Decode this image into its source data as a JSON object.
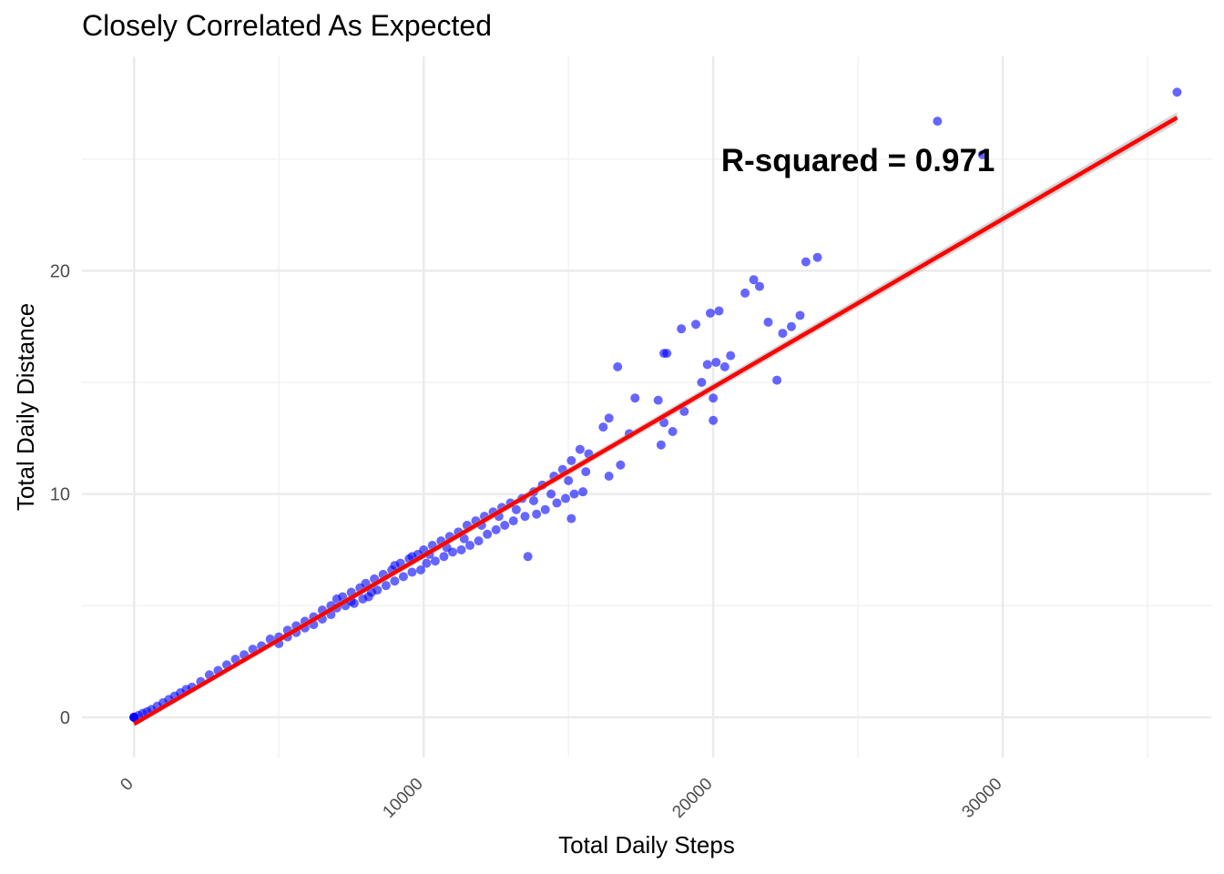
{
  "chart_data": {
    "type": "scatter",
    "title": "Closely Correlated As Expected",
    "xlabel": "Total Daily Steps",
    "ylabel": "Total Daily Distance",
    "xlim": [
      -1800,
      37200
    ],
    "ylim": [
      -1.8,
      29.6
    ],
    "x_ticks": [
      0,
      10000,
      20000,
      30000
    ],
    "x_tick_labels": [
      "0",
      "10000",
      "20000",
      "30000"
    ],
    "y_ticks": [
      0,
      10,
      20
    ],
    "y_tick_labels": [
      "0",
      "10",
      "20"
    ],
    "x_minor_ticks": [
      5000,
      15000,
      25000,
      35000
    ],
    "y_minor_ticks": [
      5,
      15,
      25
    ],
    "grid": true,
    "colors": {
      "points": "#0000ff",
      "fit_line": "#ff0000",
      "ribbon": "#999999",
      "grid": "#ebebeb"
    },
    "annotation": {
      "text": "R-squared =  0.971",
      "x": 25000,
      "y": 25
    },
    "fit_line": {
      "intercept": -0.3,
      "slope": 0.000754,
      "x_range": [
        0,
        36019
      ]
    },
    "points": [
      [
        0,
        0
      ],
      [
        0,
        0
      ],
      [
        0,
        0
      ],
      [
        0,
        0
      ],
      [
        0,
        0
      ],
      [
        0,
        0
      ],
      [
        0,
        0
      ],
      [
        0,
        0
      ],
      [
        150,
        0.08
      ],
      [
        300,
        0.18
      ],
      [
        450,
        0.25
      ],
      [
        600,
        0.35
      ],
      [
        800,
        0.5
      ],
      [
        1000,
        0.65
      ],
      [
        1200,
        0.8
      ],
      [
        1400,
        0.95
      ],
      [
        1600,
        1.1
      ],
      [
        1800,
        1.25
      ],
      [
        2000,
        1.35
      ],
      [
        2300,
        1.6
      ],
      [
        2600,
        1.9
      ],
      [
        2900,
        2.1
      ],
      [
        3200,
        2.35
      ],
      [
        3500,
        2.6
      ],
      [
        3800,
        2.8
      ],
      [
        4100,
        3.05
      ],
      [
        4400,
        3.2
      ],
      [
        4700,
        3.5
      ],
      [
        5000,
        3.6
      ],
      [
        5000,
        3.3
      ],
      [
        5300,
        3.9
      ],
      [
        5300,
        3.6
      ],
      [
        5600,
        4.1
      ],
      [
        5600,
        3.8
      ],
      [
        5900,
        4.3
      ],
      [
        5900,
        4.0
      ],
      [
        6200,
        4.5
      ],
      [
        6200,
        4.15
      ],
      [
        6500,
        4.8
      ],
      [
        6500,
        4.4
      ],
      [
        6800,
        5.0
      ],
      [
        6800,
        4.6
      ],
      [
        7000,
        5.3
      ],
      [
        7000,
        4.9
      ],
      [
        7200,
        5.4
      ],
      [
        7300,
        5.0
      ],
      [
        7500,
        5.6
      ],
      [
        7600,
        5.1
      ],
      [
        7800,
        5.8
      ],
      [
        7900,
        5.3
      ],
      [
        8000,
        6.0
      ],
      [
        8100,
        5.4
      ],
      [
        8300,
        6.2
      ],
      [
        8400,
        5.7
      ],
      [
        8600,
        6.4
      ],
      [
        8700,
        5.9
      ],
      [
        8900,
        6.6
      ],
      [
        9000,
        6.1
      ],
      [
        9200,
        6.9
      ],
      [
        9300,
        6.3
      ],
      [
        9500,
        7.1
      ],
      [
        9600,
        6.5
      ],
      [
        9800,
        7.3
      ],
      [
        9900,
        6.6
      ],
      [
        10000,
        7.5
      ],
      [
        10100,
        6.9
      ],
      [
        10300,
        7.7
      ],
      [
        10400,
        7.0
      ],
      [
        10600,
        7.9
      ],
      [
        10700,
        7.2
      ],
      [
        10900,
        8.1
      ],
      [
        11000,
        7.4
      ],
      [
        11200,
        8.3
      ],
      [
        11300,
        7.5
      ],
      [
        11500,
        8.6
      ],
      [
        11600,
        7.7
      ],
      [
        11800,
        8.8
      ],
      [
        11900,
        7.9
      ],
      [
        12100,
        9.0
      ],
      [
        12200,
        8.2
      ],
      [
        12400,
        9.2
      ],
      [
        12500,
        8.4
      ],
      [
        12700,
        9.4
      ],
      [
        12800,
        8.6
      ],
      [
        13000,
        9.6
      ],
      [
        13100,
        8.8
      ],
      [
        13400,
        9.8
      ],
      [
        13500,
        9.0
      ],
      [
        13800,
        10.1
      ],
      [
        13900,
        9.1
      ],
      [
        14100,
        10.4
      ],
      [
        14200,
        9.3
      ],
      [
        14500,
        10.8
      ],
      [
        14600,
        9.6
      ],
      [
        14800,
        11.1
      ],
      [
        14900,
        9.8
      ],
      [
        15100,
        11.5
      ],
      [
        15200,
        10.0
      ],
      [
        15400,
        12.0
      ],
      [
        15500,
        10.1
      ],
      [
        15700,
        11.8
      ],
      [
        13600,
        7.2
      ],
      [
        15100,
        8.9
      ],
      [
        16200,
        13.0
      ],
      [
        16400,
        13.4
      ],
      [
        16700,
        15.7
      ],
      [
        17300,
        14.3
      ],
      [
        17100,
        12.7
      ],
      [
        16400,
        10.8
      ],
      [
        16800,
        11.3
      ],
      [
        18100,
        14.2
      ],
      [
        18200,
        12.2
      ],
      [
        18300,
        13.2
      ],
      [
        18300,
        16.3
      ],
      [
        18400,
        16.3
      ],
      [
        18600,
        12.8
      ],
      [
        18900,
        17.4
      ],
      [
        19000,
        13.7
      ],
      [
        19400,
        17.6
      ],
      [
        19600,
        15.0
      ],
      [
        19800,
        15.8
      ],
      [
        19900,
        18.1
      ],
      [
        20000,
        13.3
      ],
      [
        20000,
        14.3
      ],
      [
        20100,
        15.9
      ],
      [
        20200,
        18.2
      ],
      [
        20400,
        15.7
      ],
      [
        20600,
        16.2
      ],
      [
        21100,
        19.0
      ],
      [
        21400,
        19.6
      ],
      [
        21600,
        19.3
      ],
      [
        21900,
        17.7
      ],
      [
        22200,
        15.1
      ],
      [
        22400,
        17.2
      ],
      [
        22700,
        17.5
      ],
      [
        23000,
        18.0
      ],
      [
        23200,
        20.4
      ],
      [
        23600,
        20.6
      ],
      [
        27745,
        26.7
      ],
      [
        29300,
        25.2
      ],
      [
        36019,
        28.0
      ],
      [
        7500,
        5.2
      ],
      [
        8200,
        5.6
      ],
      [
        9000,
        6.8
      ],
      [
        9600,
        7.2
      ],
      [
        10200,
        7.3
      ],
      [
        10800,
        7.6
      ],
      [
        11400,
        8.0
      ],
      [
        12000,
        8.6
      ],
      [
        12600,
        9.0
      ],
      [
        13200,
        9.3
      ],
      [
        13800,
        9.7
      ],
      [
        14400,
        10.0
      ],
      [
        15000,
        10.6
      ],
      [
        15600,
        11.0
      ]
    ]
  }
}
